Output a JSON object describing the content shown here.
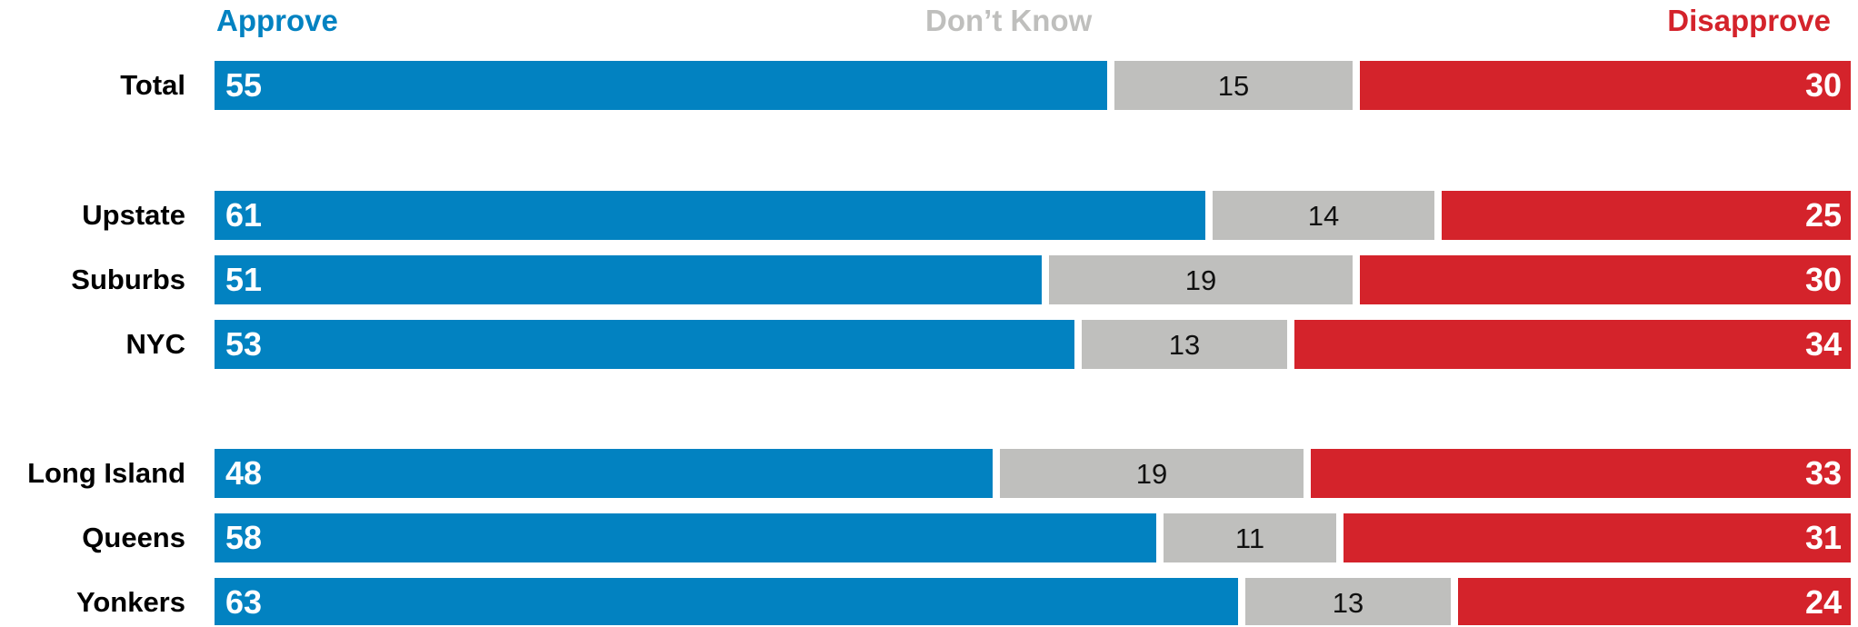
{
  "chart_data": {
    "type": "bar",
    "orientation": "horizontal",
    "stacked": true,
    "normalized_percent": true,
    "categories": [
      "Total",
      "Upstate",
      "Suburbs",
      "NYC",
      "Long Island",
      "Queens",
      "Yonkers"
    ],
    "groups": [
      [
        "Total"
      ],
      [
        "Upstate",
        "Suburbs",
        "NYC"
      ],
      [
        "Long Island",
        "Queens",
        "Yonkers"
      ]
    ],
    "series": [
      {
        "name": "Approve",
        "color": "#0282c1",
        "values": [
          55,
          61,
          51,
          53,
          48,
          58,
          63
        ]
      },
      {
        "name": "Don’t Know",
        "color": "#bfbfbd",
        "values": [
          15,
          14,
          19,
          13,
          19,
          11,
          13
        ]
      },
      {
        "name": "Disapprove",
        "color": "#d4232b",
        "values": [
          30,
          25,
          30,
          34,
          33,
          31,
          24
        ]
      }
    ],
    "legend_position": "top",
    "grid": false,
    "xlim": [
      0,
      100
    ]
  }
}
